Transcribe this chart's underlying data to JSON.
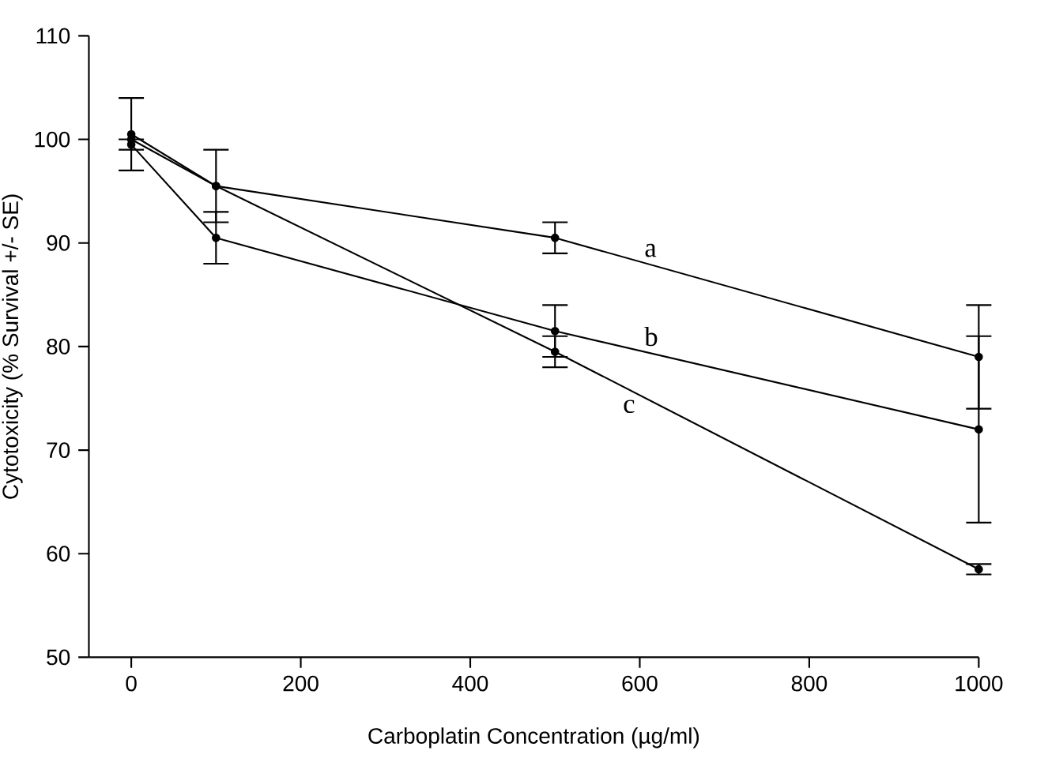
{
  "chart_data": {
    "type": "line",
    "xlabel": "Carboplatin Concentration (µg/ml)",
    "ylabel": "Cytotoxicity (% Survival +/- SE)",
    "x": [
      0,
      100,
      500,
      1000
    ],
    "series": [
      {
        "name": "a",
        "color": "#000000",
        "values": [
          100.5,
          95.5,
          90.5,
          79
        ],
        "errors": [
          3.5,
          3.5,
          1.5,
          5
        ]
      },
      {
        "name": "b",
        "color": "#010101",
        "values": [
          99.5,
          90.5,
          81.5,
          72
        ],
        "errors": [
          0.5,
          2.5,
          2.5,
          9
        ]
      },
      {
        "name": "c",
        "color": "#020202",
        "values": [
          100,
          95.5,
          79.5,
          58.5
        ],
        "errors": [
          null,
          null,
          1.5,
          0.5
        ]
      }
    ],
    "xlim": [
      -50,
      1000
    ],
    "ylim": [
      50,
      110
    ],
    "xticks": [
      0,
      200,
      400,
      600,
      800,
      1000
    ],
    "yticks": [
      50,
      60,
      70,
      80,
      90,
      100,
      110
    ],
    "marker": "circle",
    "line_style": "solid",
    "grid": false
  }
}
